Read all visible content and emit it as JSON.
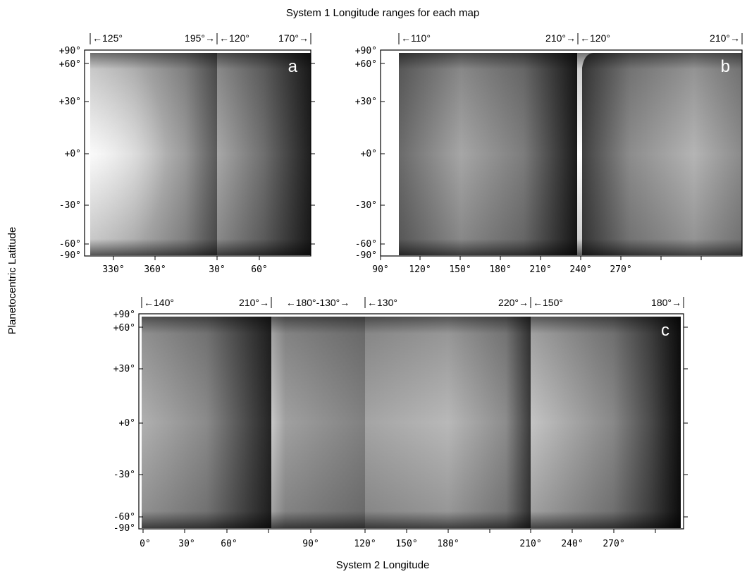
{
  "title": "System 1 Longitude ranges for each map",
  "y_axis_label": "Planetocentric Latitude",
  "x_axis_label": "System 2 Longitude",
  "latitude_ticks": [
    "+90°",
    "+60°",
    "+30°",
    "+0°",
    "-30°",
    "-60°",
    "-90°"
  ],
  "panels": [
    {
      "letter": "a",
      "x_ticks": [
        "330°",
        "360°",
        "30°",
        "60°"
      ],
      "ranges": [
        {
          "start": "125°",
          "end": "195°"
        },
        {
          "start": "120°",
          "end": "170°"
        }
      ]
    },
    {
      "letter": "b",
      "x_ticks": [
        "90°",
        "120°",
        "150°",
        "180°",
        "210°",
        "240°",
        "270°"
      ],
      "ranges": [
        {
          "start": "110°",
          "end": "210°"
        },
        {
          "start": "120°",
          "end": "210°"
        }
      ]
    },
    {
      "letter": "c",
      "x_ticks": [
        "0°",
        "30°",
        "60°",
        "90°",
        "120°",
        "150°",
        "180°",
        "210°",
        "240°",
        "270°"
      ],
      "ranges": [
        {
          "start": "140°",
          "end": "210°"
        },
        {
          "start": "180°",
          "end": "130°"
        },
        {
          "start": "130°",
          "end": "220°"
        },
        {
          "start": "150°",
          "end": "180°"
        }
      ]
    }
  ]
}
